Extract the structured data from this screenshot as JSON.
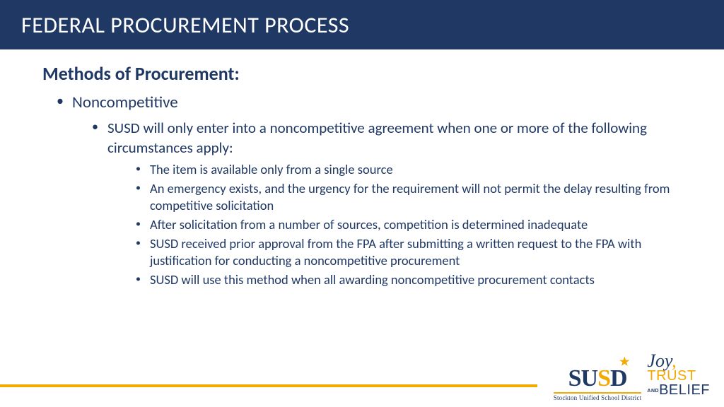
{
  "title": "FEDERAL PROCUREMENT PROCESS",
  "section_heading": "Methods of Procurement:",
  "bullets": {
    "l1": "Noncompetitive",
    "l2": "SUSD will only enter into a noncompetitive agreement when one or more of the following circumstances apply:",
    "l3": [
      "The item is available only from a single source",
      "An emergency exists, and the urgency for the requirement will not permit the delay resulting from competitive solicitation",
      "After solicitation from a number of sources, competition is determined inadequate",
      "SUSD received prior approval from the FPA after submitting a written request to the FPA with justification for conducting a noncompetitive procurement",
      "SUSD will use this method when all awarding noncompetitive procurement contacts"
    ]
  },
  "logo": {
    "main": "SUSD",
    "sub": "Stockton Unified School District",
    "joy": "Joy",
    "trust": "TRUST",
    "and": "AND",
    "belief": "BELIEF"
  },
  "colors": {
    "header_bg": "#1f3864",
    "text": "#1f3864",
    "accent": "#f2a900",
    "bg": "#ffffff"
  }
}
